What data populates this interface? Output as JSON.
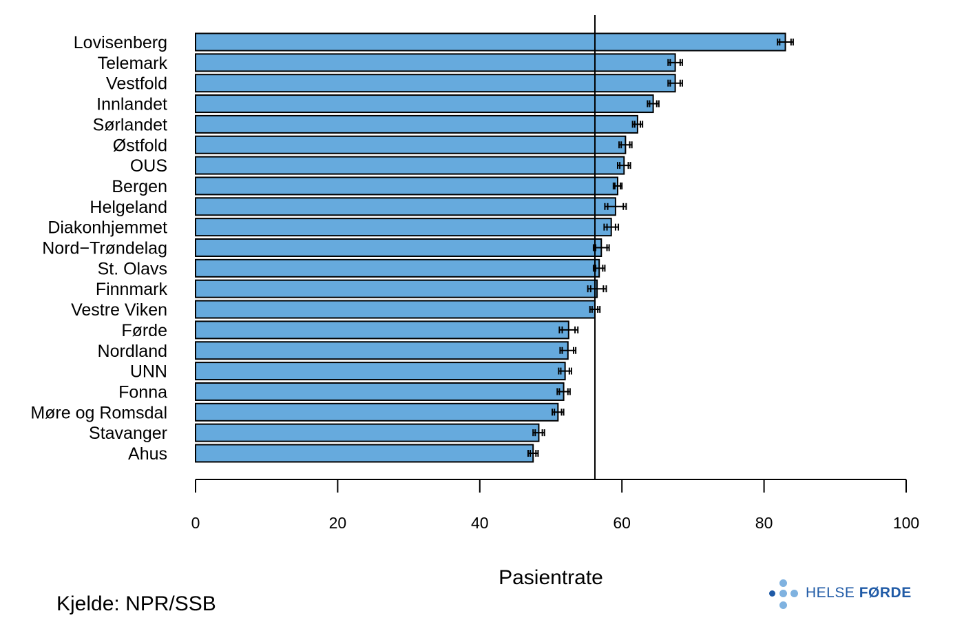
{
  "chart_data": {
    "type": "bar",
    "orientation": "horizontal",
    "categories": [
      "Lovisenberg",
      "Telemark",
      "Vestfold",
      "Innlandet",
      "Sørlandet",
      "Østfold",
      "OUS",
      "Bergen",
      "Helgeland",
      "Diakonhjemmet",
      "Nord−Trøndelag",
      "St. Olavs",
      "Finnmark",
      "Vestre Viken",
      "Førde",
      "Nordland",
      "UNN",
      "Fonna",
      "Møre og Romsdal",
      "Stavanger",
      "Ahus"
    ],
    "values": [
      83.0,
      67.5,
      67.5,
      64.4,
      62.2,
      60.5,
      60.3,
      59.4,
      59.1,
      58.5,
      57.1,
      56.8,
      56.5,
      56.2,
      52.5,
      52.4,
      52.0,
      51.8,
      51.0,
      48.3,
      47.5
    ],
    "ci_inner": [
      [
        82.2,
        83.8
      ],
      [
        66.8,
        68.2
      ],
      [
        66.8,
        68.2
      ],
      [
        63.9,
        64.9
      ],
      [
        61.8,
        62.6
      ],
      [
        59.9,
        61.1
      ],
      [
        59.7,
        60.9
      ],
      [
        59.0,
        59.8
      ],
      [
        58.0,
        60.2
      ],
      [
        57.9,
        59.1
      ],
      [
        56.3,
        57.9
      ],
      [
        56.3,
        57.3
      ],
      [
        55.6,
        57.4
      ],
      [
        55.8,
        56.6
      ],
      [
        51.6,
        53.4
      ],
      [
        51.6,
        53.2
      ],
      [
        51.4,
        52.6
      ],
      [
        51.2,
        52.4
      ],
      [
        50.5,
        51.5
      ],
      [
        47.8,
        48.8
      ],
      [
        47.1,
        47.9
      ]
    ],
    "ci_outer": [
      [
        81.9,
        84.1
      ],
      [
        66.5,
        68.5
      ],
      [
        66.5,
        68.5
      ],
      [
        63.6,
        65.2
      ],
      [
        61.5,
        62.9
      ],
      [
        59.6,
        61.4
      ],
      [
        59.4,
        61.2
      ],
      [
        58.8,
        60.0
      ],
      [
        57.6,
        60.6
      ],
      [
        57.5,
        59.5
      ],
      [
        56.0,
        58.2
      ],
      [
        56.0,
        57.6
      ],
      [
        55.2,
        57.8
      ],
      [
        55.5,
        56.9
      ],
      [
        51.2,
        53.8
      ],
      [
        51.3,
        53.5
      ],
      [
        51.1,
        52.9
      ],
      [
        50.9,
        52.7
      ],
      [
        50.2,
        51.8
      ],
      [
        47.5,
        49.1
      ],
      [
        46.8,
        48.2
      ]
    ],
    "reference_line": 56.2,
    "xlabel": "Pasientrate",
    "xticks": [
      0,
      20,
      40,
      60,
      80,
      100
    ],
    "xlim": [
      0,
      100
    ],
    "bar_color": "#66aadd",
    "grid": false,
    "legend": "none"
  },
  "source_note": "Kjelde: NPR/SSB",
  "logo": {
    "text_light": "HELSE ",
    "text_bold": "FØRDE",
    "color": "#1f5aa6",
    "dot_light": "#7fb2e0",
    "dot_dark": "#1f5aa6"
  }
}
